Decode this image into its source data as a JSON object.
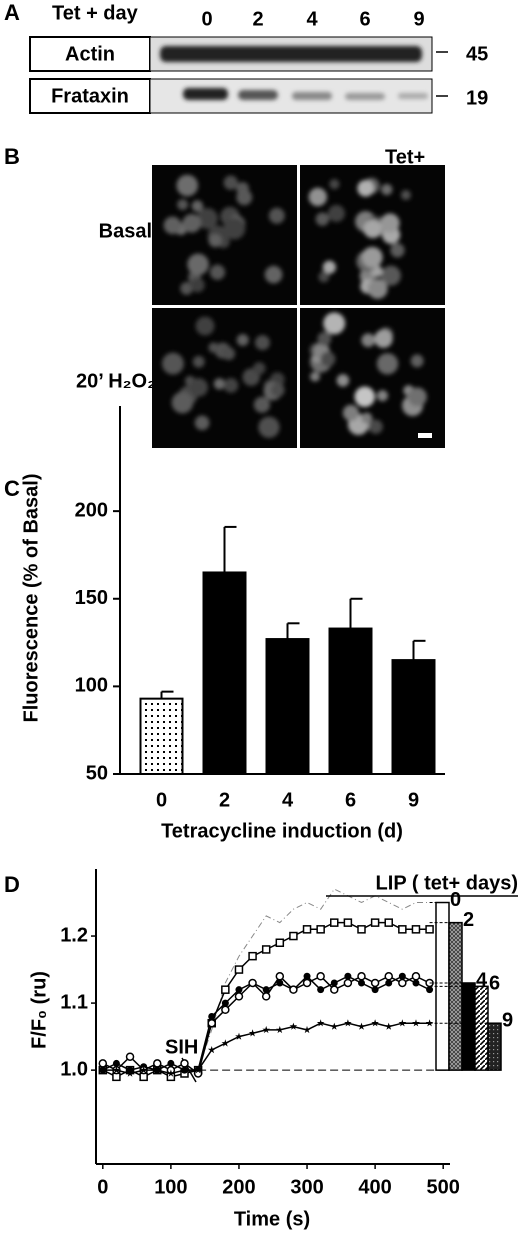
{
  "panel_a": {
    "label": "A",
    "header": "Tet + day",
    "lanes": [
      "0",
      "2",
      "4",
      "6",
      "9"
    ],
    "rows": [
      {
        "name": "Actin",
        "size": "45"
      },
      {
        "name": "Frataxin",
        "size": "19"
      }
    ]
  },
  "panel_b": {
    "label": "B",
    "column_label": "Tet+",
    "row_labels": [
      "Basal",
      "20’ H₂O₂"
    ]
  },
  "chart_data": [
    {
      "type": "bar",
      "panel_label": "C",
      "categories": [
        "0",
        "2",
        "4",
        "6",
        "9"
      ],
      "values": [
        93,
        165,
        127,
        133,
        115
      ],
      "errors": [
        4,
        26,
        9,
        17,
        11
      ],
      "colors": [
        "#ffffff",
        "#000000",
        "#000000",
        "#000000",
        "#000000"
      ],
      "hatches": [
        "dots",
        "none",
        "none",
        "none",
        "none"
      ],
      "ylim": [
        50,
        260
      ],
      "yticks": [
        50,
        100,
        150,
        200
      ],
      "ylabel": "Fluorescence (% of Basal)",
      "xlabel": "Tetracycline induction (d)"
    },
    {
      "type": "line",
      "panel_label": "D",
      "x": [
        0,
        20,
        40,
        60,
        80,
        100,
        120,
        140,
        160,
        180,
        200,
        220,
        240,
        260,
        280,
        300,
        320,
        340,
        360,
        380,
        400,
        420,
        440,
        460,
        480
      ],
      "series": [
        {
          "color": "#888888",
          "marker": "none",
          "dash": "6 3 1 3",
          "values": [
            null,
            null,
            null,
            null,
            null,
            null,
            null,
            1.0,
            1.06,
            1.13,
            1.17,
            1.2,
            1.23,
            1.22,
            1.24,
            1.25,
            1.24,
            1.27,
            1.26,
            1.25,
            1.26,
            1.25,
            1.24,
            1.25,
            1.25
          ]
        },
        {
          "color": "#000000",
          "marker": "square",
          "dash": "none",
          "values": [
            1.0,
            0.99,
            1.0,
            0.99,
            1.0,
            0.99,
            0.995,
            1.0,
            1.07,
            1.12,
            1.15,
            1.17,
            1.18,
            1.19,
            1.2,
            1.21,
            1.21,
            1.22,
            1.22,
            1.21,
            1.22,
            1.22,
            1.21,
            1.21,
            1.21
          ]
        },
        {
          "color": "#000000",
          "marker": "filled-circle",
          "dash": "none",
          "values": [
            1.0,
            1.01,
            1.0,
            1.005,
            1.0,
            1.01,
            1.0,
            1.0,
            1.08,
            1.1,
            1.12,
            1.13,
            1.12,
            1.13,
            1.12,
            1.14,
            1.12,
            1.13,
            1.14,
            1.13,
            1.12,
            1.13,
            1.14,
            1.13,
            1.12
          ]
        },
        {
          "color": "#000000",
          "marker": "open-circle",
          "dash": "none",
          "values": [
            1.01,
            1.0,
            1.02,
            1.0,
            1.01,
            1.0,
            1.01,
            0.995,
            1.07,
            1.09,
            1.11,
            1.13,
            1.11,
            1.14,
            1.12,
            1.13,
            1.14,
            1.12,
            1.13,
            1.14,
            1.13,
            1.14,
            1.13,
            1.14,
            1.13
          ]
        },
        {
          "color": "#000000",
          "marker": "star",
          "dash": "none",
          "values": [
            1.0,
            1.0,
            0.995,
            1.0,
            1.0,
            0.995,
            1.0,
            1.0,
            1.03,
            1.04,
            1.05,
            1.055,
            1.06,
            1.06,
            1.065,
            1.06,
            1.07,
            1.065,
            1.07,
            1.065,
            1.07,
            1.065,
            1.07,
            1.07,
            1.07
          ]
        }
      ],
      "xlim": [
        -10,
        510
      ],
      "xticks": [
        0,
        100,
        200,
        300,
        400,
        500
      ],
      "ylim": [
        0.86,
        1.3
      ],
      "yticks": [
        {
          "value": 1,
          "label": "1.0"
        },
        {
          "value": 1.1,
          "label": "1.1"
        },
        {
          "value": 1.2,
          "label": "1.2"
        }
      ],
      "xlabel": "Time (s)",
      "ylabel": "F/F₀ (ru)",
      "annotation": "SIH",
      "baseline": 1,
      "inset": {
        "type": "bar",
        "title": "LIP ( tet+ days)",
        "categories": [
          "0",
          "2",
          "4",
          "6",
          "9"
        ],
        "values": [
          1.25,
          1.22,
          1.13,
          1.125,
          1.07
        ],
        "hatches": [
          "none",
          "cross",
          "solid",
          "diagonal",
          "dots"
        ]
      }
    }
  ]
}
